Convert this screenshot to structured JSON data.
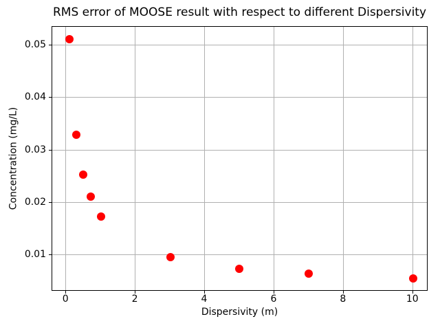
{
  "chart_data": {
    "type": "scatter",
    "title": "RMS error of MOOSE result with respect to different Dispersivity",
    "xlabel": "Dispersivity (m)",
    "ylabel": "Concentration (mg/L)",
    "x": [
      0.1,
      0.3,
      0.5,
      0.7,
      1.0,
      3.0,
      5.0,
      7.0,
      10.0
    ],
    "y": [
      0.0512,
      0.0329,
      0.0253,
      0.0212,
      0.0174,
      0.0096,
      0.0074,
      0.0065,
      0.0056
    ],
    "series_name": "RMS error",
    "xlim": [
      -0.4,
      10.44
    ],
    "ylim": [
      0.0031,
      0.0535
    ],
    "xticks": [
      0,
      2,
      4,
      6,
      8,
      10
    ],
    "xtick_labels": [
      "0",
      "2",
      "4",
      "6",
      "8",
      "10"
    ],
    "yticks": [
      0.01,
      0.02,
      0.03,
      0.04,
      0.05
    ],
    "ytick_labels": [
      "0.01",
      "0.02",
      "0.03",
      "0.04",
      "0.05"
    ],
    "grid": true,
    "legend": "none",
    "colors": {
      "marker": "#ff0000",
      "grid": "#b0b0b0",
      "spine": "#000000",
      "text": "#000000",
      "background": "#ffffff"
    }
  }
}
